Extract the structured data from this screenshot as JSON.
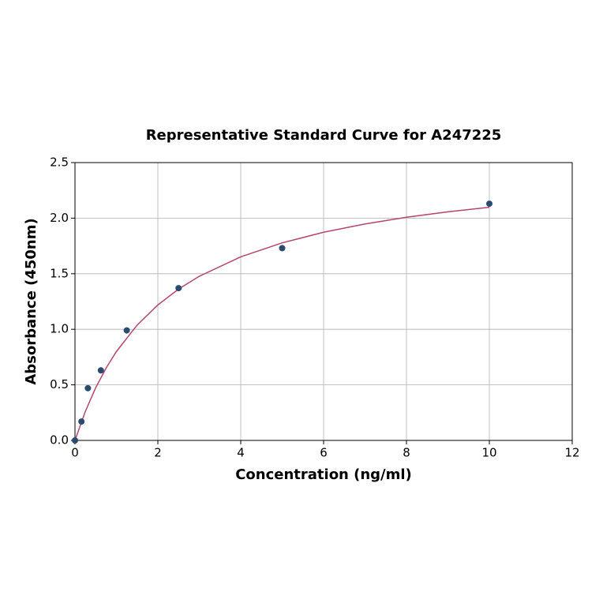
{
  "chart_data": {
    "type": "scatter",
    "title": "Representative Standard Curve for A247225",
    "xlabel": "Concentration (ng/ml)",
    "ylabel": "Absorbance (450nm)",
    "xlim": [
      0,
      12
    ],
    "ylim": [
      0,
      2.5
    ],
    "xticks": [
      0,
      2,
      4,
      6,
      8,
      10,
      12
    ],
    "yticks": [
      {
        "value": 0,
        "label": "0.0"
      },
      {
        "value": 0.5,
        "label": "0.5"
      },
      {
        "value": 1,
        "label": "1.0"
      },
      {
        "value": 1.5,
        "label": "1.5"
      },
      {
        "value": 2,
        "label": "2.0"
      },
      {
        "value": 2.5,
        "label": "2.5"
      }
    ],
    "grid": true,
    "series": [
      {
        "type": "line",
        "color": "#b5466b",
        "x": [
          0,
          0.25,
          0.5,
          0.75,
          1,
          1.5,
          2,
          2.5,
          3,
          4,
          5,
          6,
          7,
          8,
          9,
          10
        ],
        "values": [
          0,
          0.261,
          0.474,
          0.651,
          0.8,
          1.038,
          1.219,
          1.362,
          1.477,
          1.652,
          1.778,
          1.873,
          1.948,
          2.008,
          2.057,
          2.098
        ]
      },
      {
        "type": "scatter",
        "color": "#2b4a70",
        "x": [
          0,
          0.156,
          0.312,
          0.625,
          1.25,
          2.5,
          5,
          10
        ],
        "values": [
          0,
          0.17,
          0.47,
          0.63,
          0.99,
          1.37,
          1.73,
          2.13
        ]
      }
    ]
  }
}
